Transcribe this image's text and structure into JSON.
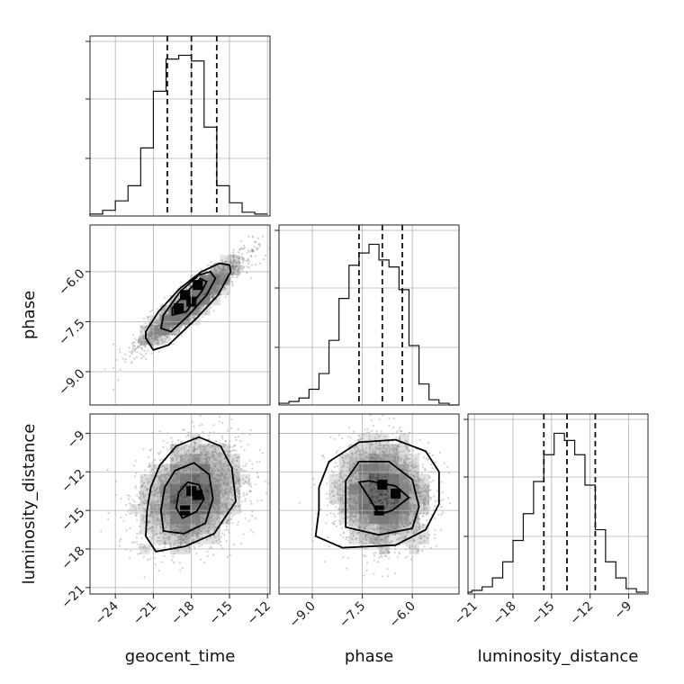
{
  "chart_data": {
    "type": "corner",
    "parameters": [
      {
        "name": "geocent_time",
        "label": "geocent_time",
        "ticks": [
          -24,
          -21,
          -18,
          -15,
          -12
        ],
        "tick_labels": [
          "−24",
          "−21",
          "−18",
          "−15",
          "−12"
        ],
        "range": [
          -26,
          -11.8
        ],
        "quantiles": [
          -19.9,
          -18.0,
          -16.0
        ],
        "hist_bin_edges": [
          -26,
          -25,
          -24,
          -23,
          -22,
          -21,
          -20,
          -19,
          -18,
          -17,
          -16,
          -15,
          -14,
          -13,
          -12
        ],
        "hist_counts": [
          1,
          3,
          8,
          16,
          36,
          66,
          83,
          85,
          82,
          47,
          16,
          7,
          2,
          1
        ]
      },
      {
        "name": "phase",
        "label": "phase",
        "ticks": [
          -9.0,
          -7.5,
          -6.0
        ],
        "tick_labels": [
          "−9.0",
          "−7.5",
          "−6.0"
        ],
        "range": [
          -10.0,
          -4.6
        ],
        "quantiles": [
          -7.6,
          -6.9,
          -6.3
        ],
        "hist_bin_edges": [
          -10.0,
          -9.7,
          -9.4,
          -9.1,
          -8.8,
          -8.5,
          -8.2,
          -7.9,
          -7.6,
          -7.3,
          -7.0,
          -6.7,
          -6.4,
          -6.1,
          -5.8,
          -5.5,
          -5.2,
          -4.9,
          -4.6
        ],
        "hist_counts": [
          1,
          2,
          4,
          9,
          18,
          37,
          61,
          80,
          87,
          92,
          83,
          79,
          66,
          34,
          12,
          3,
          1,
          0
        ]
      },
      {
        "name": "luminosity_distance",
        "label": "luminosity_distance",
        "ticks": [
          -21,
          -18,
          -15,
          -12,
          -9
        ],
        "tick_labels": [
          "−21",
          "−18",
          "−15",
          "−12",
          "−9"
        ],
        "range": [
          -21.5,
          -7.5
        ],
        "quantiles": [
          -15.6,
          -13.8,
          -11.6
        ],
        "hist_bin_edges": [
          -22.0,
          -21.2,
          -20.4,
          -19.6,
          -18.8,
          -18.0,
          -17.2,
          -16.4,
          -15.6,
          -14.8,
          -14.0,
          -13.2,
          -12.4,
          -11.6,
          -10.8,
          -10.0,
          -9.2,
          -8.4,
          -7.6
        ],
        "hist_counts": [
          1,
          2,
          4,
          9,
          18,
          30,
          45,
          63,
          78,
          90,
          86,
          78,
          61,
          36,
          18,
          9,
          3,
          1
        ]
      }
    ],
    "pairs": [
      {
        "x": "geocent_time",
        "y": "phase",
        "correlation": 0.93,
        "hot_cells": [
          [
            -19.0,
            -7.1
          ],
          [
            -18.0,
            -6.9
          ],
          [
            -18.5,
            -6.7
          ],
          [
            -17.5,
            -6.4
          ]
        ],
        "contours": [
          [
            [
              -21.6,
              -8.0
            ],
            [
              -21.0,
              -8.35
            ],
            [
              -19.8,
              -8.2
            ],
            [
              -17.6,
              -7.4
            ],
            [
              -15.9,
              -6.7
            ],
            [
              -14.9,
              -6.0
            ],
            [
              -15.0,
              -5.8
            ],
            [
              -15.8,
              -5.75
            ],
            [
              -17.2,
              -6.0
            ],
            [
              -18.9,
              -6.5
            ],
            [
              -20.6,
              -7.2
            ],
            [
              -21.6,
              -7.8
            ],
            [
              -21.6,
              -8.0
            ]
          ],
          [
            [
              -20.4,
              -7.7
            ],
            [
              -19.6,
              -7.8
            ],
            [
              -18.2,
              -7.3
            ],
            [
              -16.8,
              -6.7
            ],
            [
              -16.1,
              -6.2
            ],
            [
              -16.5,
              -6.0
            ],
            [
              -17.4,
              -6.1
            ],
            [
              -18.9,
              -6.6
            ],
            [
              -20.2,
              -7.3
            ],
            [
              -20.4,
              -7.7
            ]
          ],
          [
            [
              -19.5,
              -7.3
            ],
            [
              -18.4,
              -7.2
            ],
            [
              -17.2,
              -6.6
            ],
            [
              -16.8,
              -6.3
            ],
            [
              -17.3,
              -6.2
            ],
            [
              -18.6,
              -6.7
            ],
            [
              -19.5,
              -7.1
            ],
            [
              -19.5,
              -7.3
            ]
          ]
        ]
      },
      {
        "x": "geocent_time",
        "y": "luminosity_distance",
        "correlation": 0.25,
        "hot_cells": [
          [
            -18.0,
            -13.5
          ],
          [
            -17.5,
            -13.8
          ],
          [
            -18.5,
            -15.0
          ]
        ],
        "contours": [
          [
            [
              -21.5,
              -15.0
            ],
            [
              -21.6,
              -17.0
            ],
            [
              -20.8,
              -18.2
            ],
            [
              -18.5,
              -17.8
            ],
            [
              -16.2,
              -16.8
            ],
            [
              -14.5,
              -14.3
            ],
            [
              -14.8,
              -11.7
            ],
            [
              -15.7,
              -10.0
            ],
            [
              -17.4,
              -9.3
            ],
            [
              -19.2,
              -10.0
            ],
            [
              -20.5,
              -11.5
            ],
            [
              -21.2,
              -13.2
            ],
            [
              -21.5,
              -15.0
            ]
          ],
          [
            [
              -20.4,
              -15.0
            ],
            [
              -20.2,
              -16.6
            ],
            [
              -18.6,
              -16.8
            ],
            [
              -16.9,
              -16.0
            ],
            [
              -16.3,
              -14.1
            ],
            [
              -16.6,
              -12.2
            ],
            [
              -17.8,
              -11.3
            ],
            [
              -19.3,
              -11.9
            ],
            [
              -20.1,
              -13.2
            ],
            [
              -20.4,
              -15.0
            ]
          ],
          [
            [
              -19.2,
              -14.8
            ],
            [
              -18.7,
              -15.6
            ],
            [
              -17.6,
              -15.1
            ],
            [
              -17.0,
              -14.1
            ],
            [
              -17.4,
              -13.0
            ],
            [
              -18.3,
              -12.8
            ],
            [
              -19.0,
              -13.6
            ],
            [
              -19.2,
              -14.8
            ]
          ]
        ]
      },
      {
        "x": "phase",
        "y": "luminosity_distance",
        "correlation": -0.05,
        "hot_cells": [
          [
            -6.5,
            -13.7
          ],
          [
            -7.0,
            -15.0
          ],
          [
            -6.9,
            -13.0
          ]
        ],
        "contours": [
          [
            [
              -8.8,
              -15.0
            ],
            [
              -8.9,
              -17.0
            ],
            [
              -8.1,
              -17.9
            ],
            [
              -6.5,
              -17.7
            ],
            [
              -5.6,
              -16.5
            ],
            [
              -5.2,
              -14.5
            ],
            [
              -5.2,
              -12.0
            ],
            [
              -5.6,
              -10.4
            ],
            [
              -6.5,
              -9.5
            ],
            [
              -7.6,
              -9.7
            ],
            [
              -8.5,
              -11.2
            ],
            [
              -8.8,
              -13.2
            ],
            [
              -8.8,
              -15.0
            ]
          ],
          [
            [
              -8.0,
              -14.8
            ],
            [
              -8.0,
              -16.3
            ],
            [
              -7.0,
              -16.9
            ],
            [
              -6.0,
              -16.4
            ],
            [
              -5.8,
              -14.7
            ],
            [
              -6.0,
              -12.6
            ],
            [
              -6.7,
              -11.2
            ],
            [
              -7.6,
              -11.2
            ],
            [
              -8.0,
              -12.7
            ],
            [
              -8.0,
              -14.8
            ]
          ],
          [
            [
              -7.3,
              -14.0
            ],
            [
              -7.0,
              -15.3
            ],
            [
              -6.6,
              -15.0
            ],
            [
              -6.1,
              -14.0
            ],
            [
              -6.5,
              -13.1
            ],
            [
              -7.3,
              -12.7
            ],
            [
              -7.6,
              -12.8
            ],
            [
              -7.3,
              -14.0
            ]
          ]
        ]
      }
    ],
    "grid": true
  }
}
